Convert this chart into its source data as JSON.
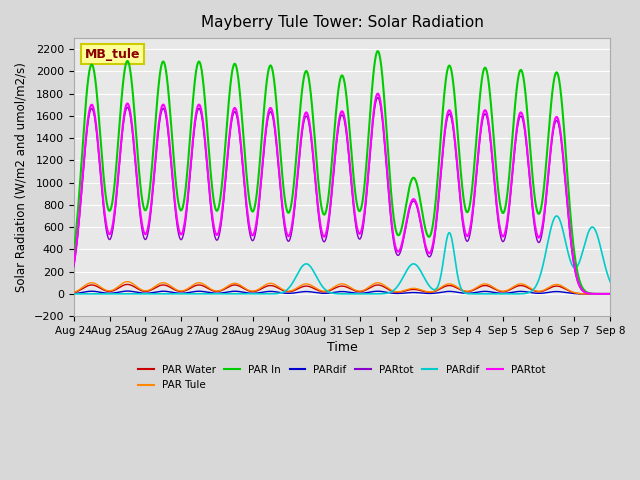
{
  "title": "Mayberry Tule Tower: Solar Radiation",
  "xlabel": "Time",
  "ylabel": "Solar Radiation (W/m2 and umol/m2/s)",
  "ylim": [
    -200,
    2300
  ],
  "yticks": [
    -200,
    0,
    200,
    400,
    600,
    800,
    1000,
    1200,
    1400,
    1600,
    1800,
    2000,
    2200
  ],
  "background_color": "#d8d8d8",
  "plot_bg_color": "#e8e8e8",
  "date_labels": [
    "Aug 24",
    "Aug 25",
    "Aug 26",
    "Aug 27",
    "Aug 28",
    "Aug 29",
    "Aug 30",
    "Aug 31",
    "Sep 1",
    "Sep 2",
    "Sep 3",
    "Sep 4",
    "Sep 5",
    "Sep 6",
    "Sep 7",
    "Sep 8"
  ],
  "annotation_text": "MB_tule",
  "annotation_color": "#8b0000",
  "annotation_bg": "#ffff99",
  "legend_entries": [
    {
      "label": "PAR Water",
      "color": "#cc0000",
      "lw": 1.5
    },
    {
      "label": "PAR Tule",
      "color": "#ff8800",
      "lw": 1.5
    },
    {
      "label": "PAR In",
      "color": "#00cc00",
      "lw": 1.5
    },
    {
      "label": "PARdif",
      "color": "#0000cc",
      "lw": 1.5
    },
    {
      "label": "PARtot",
      "color": "#8800cc",
      "lw": 1.5
    },
    {
      "label": "PARdif",
      "color": "#00cccc",
      "lw": 1.5
    },
    {
      "label": "PARtot",
      "color": "#ff00ff",
      "lw": 1.5
    }
  ],
  "peak_green": [
    2060,
    2090,
    2085,
    2085,
    2065,
    2050,
    2000,
    1960,
    2180,
    1040,
    2050,
    2030,
    2010,
    1990,
    0
  ],
  "peak_magenta": [
    1700,
    1710,
    1700,
    1700,
    1670,
    1670,
    1630,
    1640,
    1800,
    850,
    1650,
    1650,
    1630,
    1590,
    0
  ],
  "peak_red": [
    80,
    85,
    80,
    80,
    80,
    75,
    70,
    70,
    80,
    40,
    75,
    75,
    75,
    70,
    0
  ],
  "peak_orange": [
    100,
    110,
    100,
    100,
    95,
    95,
    90,
    90,
    100,
    50,
    90,
    90,
    90,
    85,
    0
  ],
  "cyan_peaks": [
    0,
    0,
    0,
    0,
    0,
    0,
    270,
    0,
    0,
    270,
    550,
    0,
    0,
    700,
    600
  ],
  "cyan_widths": [
    0.27,
    0.27,
    0.27,
    0.27,
    0.27,
    0.27,
    0.27,
    0.27,
    0.27,
    0.27,
    0.15,
    0.27,
    0.27,
    0.27,
    0.27
  ]
}
